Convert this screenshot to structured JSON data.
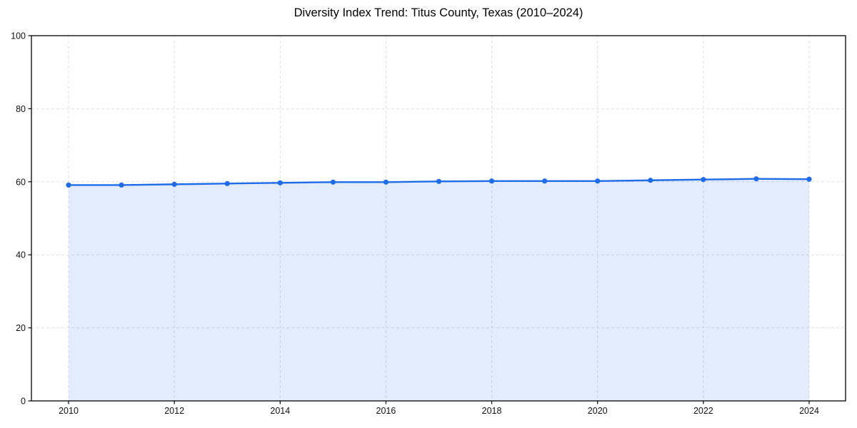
{
  "chart_data": {
    "type": "line",
    "title": "Diversity Index Trend: Titus County, Texas (2010–2024)",
    "x": [
      2010,
      2011,
      2012,
      2013,
      2014,
      2015,
      2016,
      2017,
      2018,
      2019,
      2020,
      2021,
      2022,
      2023,
      2024
    ],
    "series": [
      {
        "name": "Diversity Index",
        "values": [
          59.1,
          59.1,
          59.3,
          59.5,
          59.7,
          59.9,
          59.9,
          60.1,
          60.2,
          60.2,
          60.2,
          60.4,
          60.6,
          60.8,
          60.7
        ]
      }
    ],
    "xticks": [
      2010,
      2012,
      2014,
      2016,
      2018,
      2020,
      2022,
      2024
    ],
    "yticks": [
      0,
      20,
      40,
      60,
      80,
      100
    ],
    "ylim": [
      0,
      100
    ],
    "xlabel": "",
    "ylabel": "",
    "grid": true,
    "grid_style": "dashed",
    "legend": "none",
    "marker": "circle",
    "area_fill": true,
    "colors": {
      "line": "#1f6ce8",
      "marker": "#1f6ce8",
      "fill": "#1f6ce8",
      "fill_opacity": 0.13,
      "grid": "#e0e0e0",
      "axis": "#000000",
      "text": "#111111",
      "background": "#ffffff"
    }
  }
}
